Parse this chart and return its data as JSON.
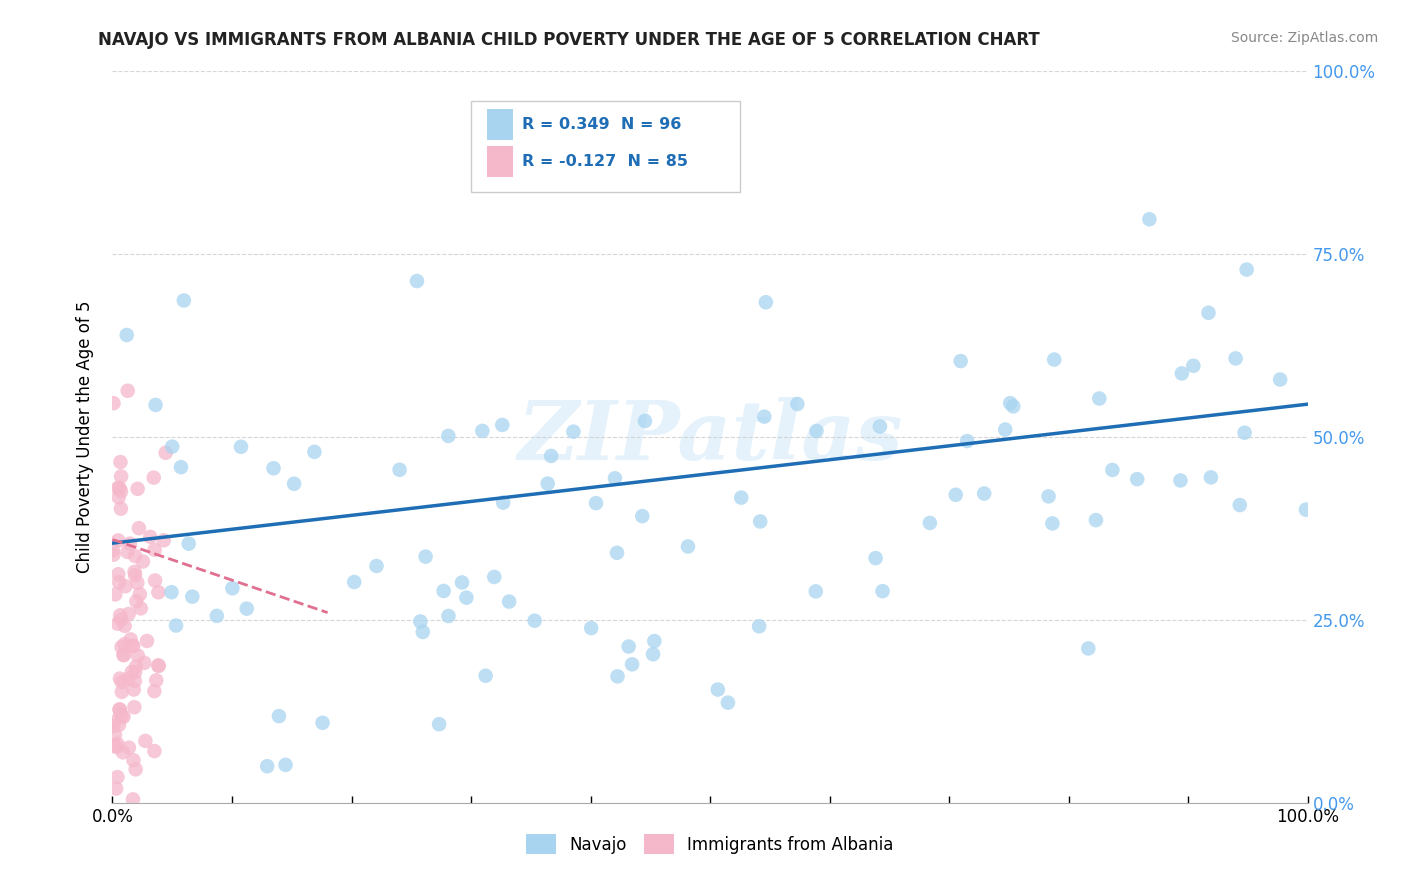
{
  "title": "NAVAJO VS IMMIGRANTS FROM ALBANIA CHILD POVERTY UNDER THE AGE OF 5 CORRELATION CHART",
  "source": "Source: ZipAtlas.com",
  "ylabel": "Child Poverty Under the Age of 5",
  "legend_labels": [
    "Navajo",
    "Immigrants from Albania"
  ],
  "legend_r1": "R = 0.349  N = 96",
  "legend_r2": "R = -0.127  N = 85",
  "navajo_color": "#a8d4f0",
  "albania_color": "#f5b8cb",
  "navajo_line_color": "#1f6eb5",
  "albania_line_color": "#e07090",
  "navajo_R": 0.349,
  "albania_R": -0.127,
  "xlim": [
    0.0,
    1.0
  ],
  "ylim": [
    0.0,
    1.0
  ],
  "right_ytick_labels": [
    "100.0%",
    "75.0%",
    "50.0%",
    "25.0%",
    "0.0%"
  ],
  "right_ytick_positions": [
    1.0,
    0.75,
    0.5,
    0.25,
    0.0
  ],
  "right_ytick_color": "#4499ee",
  "background_color": "#ffffff",
  "watermark_text": "ZIPatlas",
  "navajo_line_x0": 0.0,
  "navajo_line_y0": 0.355,
  "navajo_line_x1": 1.0,
  "navajo_line_y1": 0.545,
  "albania_line_x0": 0.0,
  "albania_line_y0": 0.36,
  "albania_line_x1": 0.18,
  "albania_line_y1": 0.26
}
